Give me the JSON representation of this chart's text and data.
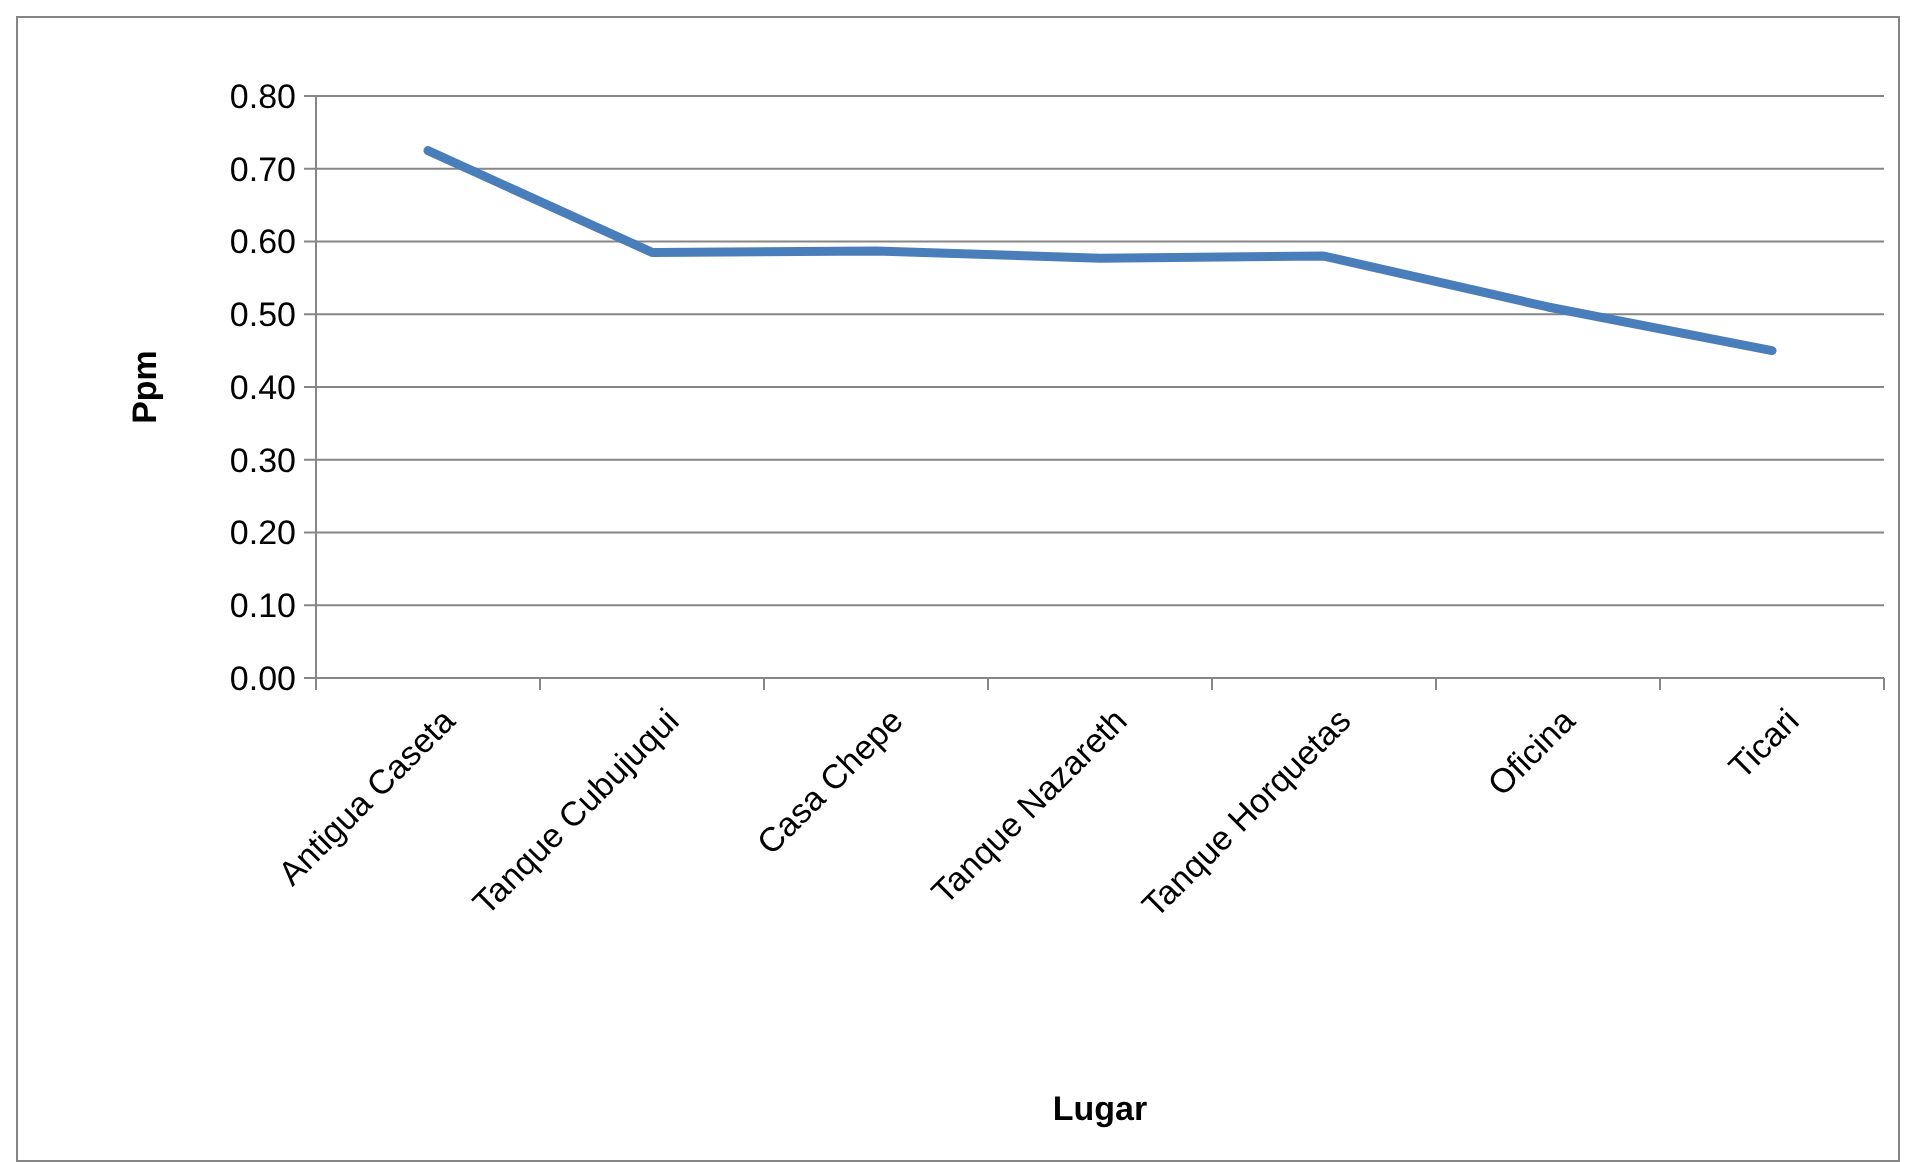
{
  "chart_data": {
    "type": "line",
    "xlabel": "Lugar",
    "ylabel": "Ppm",
    "categories": [
      "Antigua Caseta",
      "Tanque Cubujuqui",
      "Casa Chepe",
      "Tanque Nazareth",
      "Tanque Horquetas",
      "Oficina",
      "Ticari"
    ],
    "series": [
      {
        "color": "#4a7ebb",
        "values": [
          0.725,
          0.585,
          0.587,
          0.577,
          0.58,
          0.51,
          0.45
        ]
      }
    ],
    "ylim": [
      0,
      0.8
    ],
    "yticks": [
      {
        "value": 0,
        "label": "0.00"
      },
      {
        "value": 0.1,
        "label": "0.10"
      },
      {
        "value": 0.2,
        "label": "0.20"
      },
      {
        "value": 0.3,
        "label": "0.30"
      },
      {
        "value": 0.4,
        "label": "0.40"
      },
      {
        "value": 0.5,
        "label": "0.50"
      },
      {
        "value": 0.6,
        "label": "0.60"
      },
      {
        "value": 0.7,
        "label": "0.70"
      },
      {
        "value": 0.8,
        "label": "0.80"
      }
    ],
    "grid": "y",
    "marker": "none",
    "line_style": "solid"
  }
}
